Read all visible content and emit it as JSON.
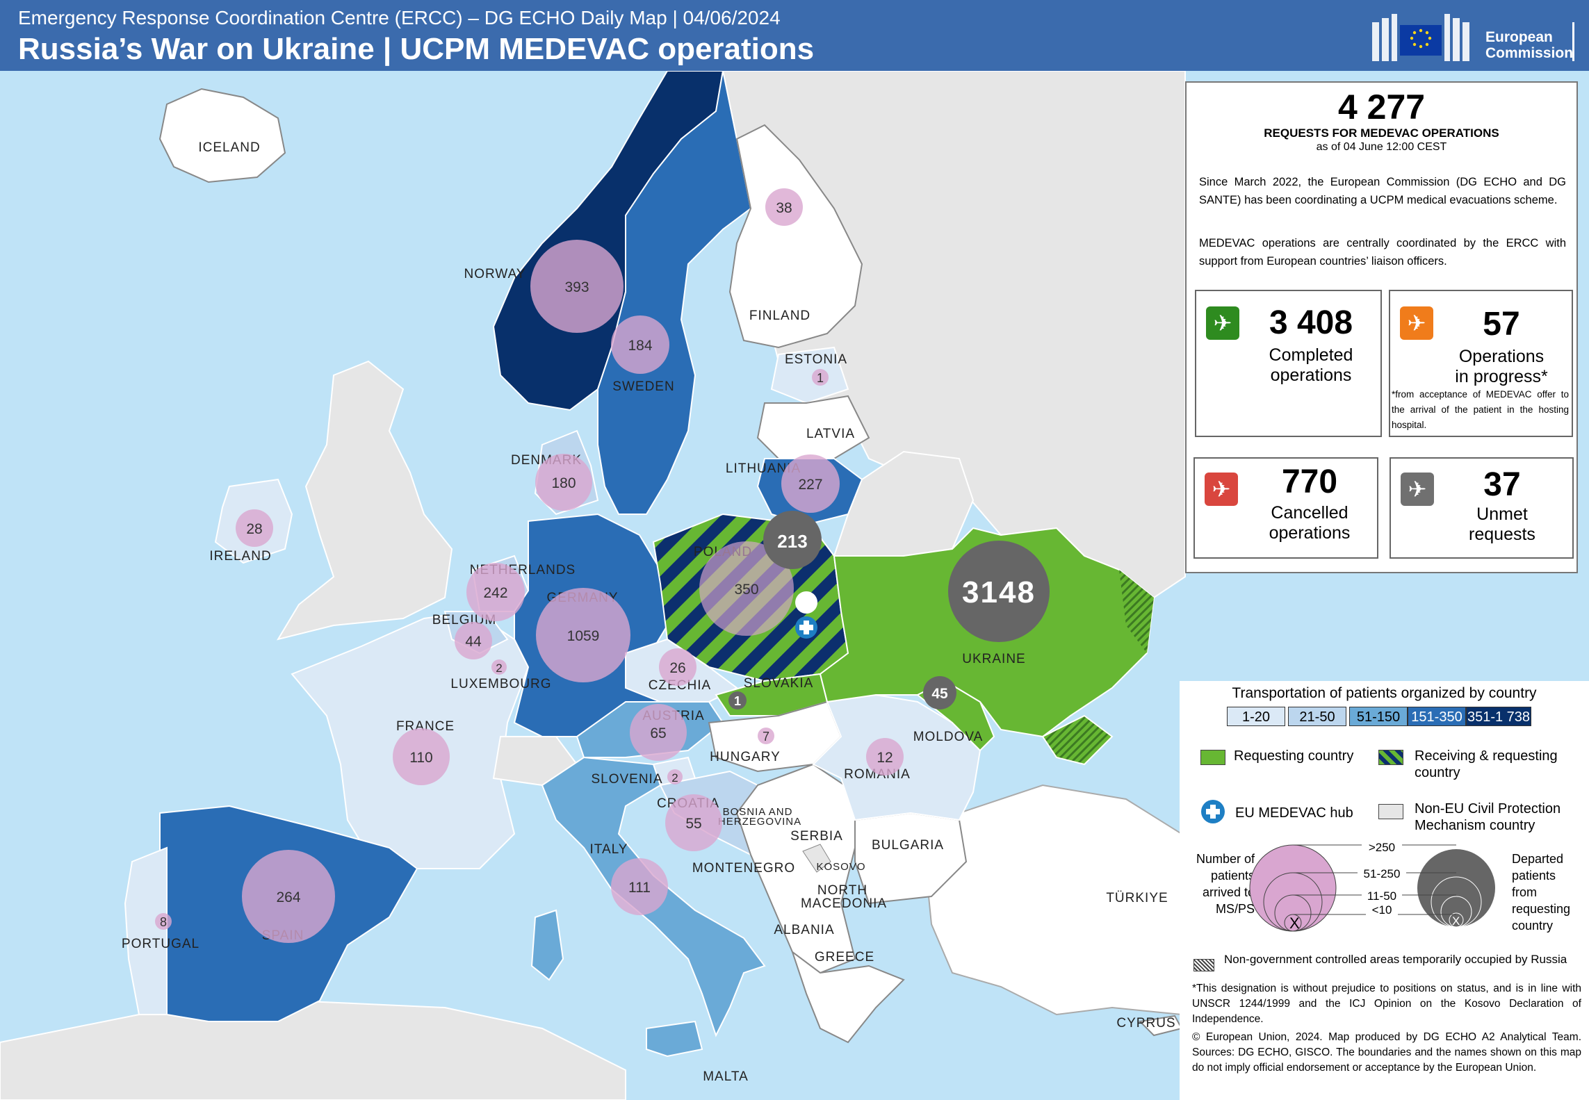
{
  "header": {
    "subtitle": "Emergency Response Coordination Centre (ERCC) – DG ECHO Daily Map | 04/06/2024",
    "title": "Russia’s War on Ukraine | UCPM MEDEVAC operations",
    "logo_line1": "European",
    "logo_line2": "Commission"
  },
  "summary": {
    "total": "4 277",
    "total_label": "REQUESTS FOR MEDEVAC OPERATIONS",
    "as_of": "as of 04 June 12:00 CEST",
    "para1": "Since March 2022, the European Commission (DG ECHO and DG SANTE) has been coordinating a UCPM medical evacuations scheme.",
    "para2": "MEDEVAC operations are centrally coordinated by the ERCC with support from European countries’ liaison officers."
  },
  "stats": {
    "completed": {
      "value": "3 408",
      "line1": "Completed",
      "line2": "operations",
      "color": "#2e8b1f"
    },
    "in_progress": {
      "value": "57",
      "line1": "Operations",
      "line2": "in progress*",
      "note": "*from acceptance of MEDEVAC offer to the arrival of the patient in the hosting hospital.",
      "color": "#f07c1b"
    },
    "cancelled": {
      "value": "770",
      "line1": "Cancelled",
      "line2": "operations",
      "color": "#d9463e"
    },
    "unmet": {
      "value": "37",
      "line1": "Unmet",
      "line2": "requests",
      "color": "#707070"
    }
  },
  "legend": {
    "title": "Transportation of patients organized by country",
    "classes": [
      {
        "label": "1-20",
        "color": "#dbe9f6"
      },
      {
        "label": "21-50",
        "color": "#bcd6ee"
      },
      {
        "label": "51-150",
        "color": "#6aaad7"
      },
      {
        "label": "151-350",
        "color": "#2a6db5"
      },
      {
        "label": "351-1 738",
        "color": "#08306b"
      }
    ],
    "requesting": "Requesting country",
    "receiving_requesting": "Receiving & requesting country",
    "hub": "EU MEDEVAC hub",
    "non_eu": "Non-EU Civil Protection Mechanism country",
    "arrived_label": "Number of patients arrived to MS/PS",
    "departed_label": "Departed patients from requesting country",
    "size_classes": [
      ">250",
      "51-250",
      "11-50",
      "<10"
    ],
    "occupied": "Non-government controlled areas temporarily occupied by Russia",
    "footnote": "*This designation is without prejudice to positions on status, and is in line with UNSCR 1244/1999 and the ICJ Opinion on the Kosovo Declaration of Independence.",
    "copyright": "© European Union, 2024. Map produced by DG ECHO A2 Analytical Team. Sources: DG ECHO, GISCO. The boundaries and the names shown on this map do not imply official endorsement or acceptance by the European Union."
  },
  "map": {
    "labels": {
      "iceland": "ICELAND",
      "norway": "NORWAY",
      "sweden": "SWEDEN",
      "finland": "FINLAND",
      "estonia": "ESTONIA",
      "latvia": "LATVIA",
      "lithuania": "LITHUANIA",
      "denmark": "DENMARK",
      "ireland": "IRELAND",
      "netherlands": "NETHERLANDS",
      "belgium": "BELGIUM",
      "luxembourg": "LUXEMBOURG",
      "germany": "GERMANY",
      "poland": "POLAND",
      "czechia": "CZECHIA",
      "slovakia": "SLOVAKIA",
      "austria": "AUSTRIA",
      "hungary": "HUNGARY",
      "slovenia": "SLOVENIA",
      "croatia": "CROATIA",
      "bosnia1": "BOSNIA AND",
      "bosnia2": "HERZEGOVINA",
      "serbia": "SERBIA",
      "kosovo": "KOSOVO",
      "montenegro": "MONTENEGRO",
      "north_macedonia1": "NORTH",
      "north_macedonia2": "MACEDONIA",
      "albania": "ALBANIA",
      "greece": "GREECE",
      "bulgaria": "BULGARIA",
      "romania": "ROMANIA",
      "moldova": "MOLDOVA",
      "ukraine": "UKRAINE",
      "turkiye": "TÜRKIYE",
      "cyprus": "CYPRUS",
      "malta": "MALTA",
      "italy": "ITALY",
      "france": "FRANCE",
      "spain": "SPAIN",
      "portugal": "PORTUGAL"
    },
    "arrivals": {
      "norway": "393",
      "sweden": "184",
      "finland": "38",
      "estonia": "1",
      "lithuania": "227",
      "denmark": "180",
      "ireland": "28",
      "netherlands": "242",
      "belgium": "44",
      "luxembourg": "2",
      "germany": "1059",
      "poland": "350",
      "czechia": "26",
      "austria": "65",
      "hungary": "7",
      "slovenia": "2",
      "croatia": "55",
      "romania": "12",
      "france": "110",
      "italy": "111",
      "spain": "264",
      "portugal": "8"
    },
    "departures": {
      "poland": "213",
      "ukraine": "3148",
      "slovakia": "1",
      "moldova": "45"
    }
  }
}
